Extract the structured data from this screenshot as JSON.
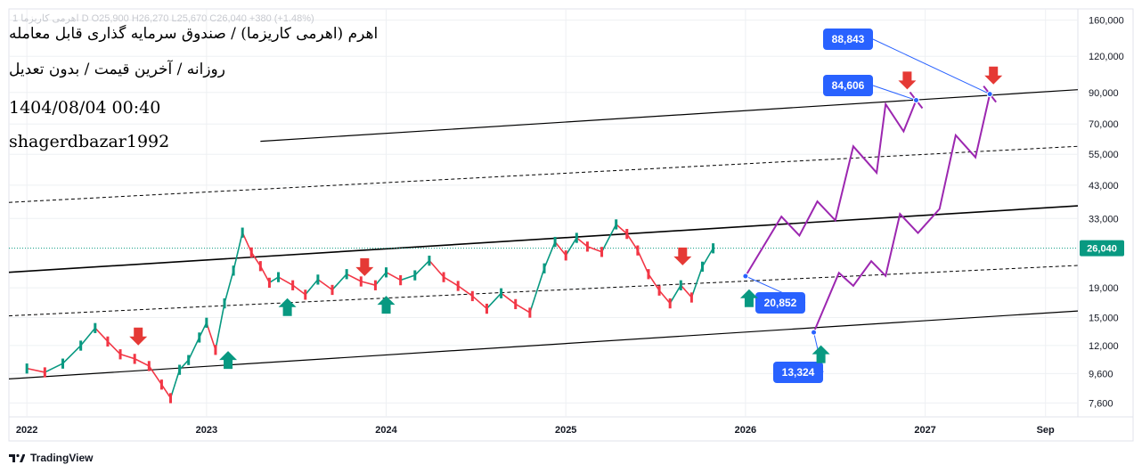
{
  "header": {
    "ticker_line": "اهرم (اهرمی کاریزما) / صندوق سرمایه گذاری قابل معامله",
    "sub_line": "روزانه / آخرین قیمت / بدون تعدیل",
    "date_line": "1404/08/04 00:40",
    "author_line": "shagerdbazar1992",
    "faded_info": "1 اهرمی کاریزما D  O25,900  H26,270  L25,670  C26,040  +380 (+1.48%)"
  },
  "brand": {
    "name": "TradingView"
  },
  "chart_data": {
    "type": "line",
    "y_scale": "log",
    "ylim": [
      6800,
      175000
    ],
    "xlim": [
      2021.9,
      2027.85
    ],
    "y_ticks": [
      160000,
      120000,
      90000,
      70000,
      55000,
      43000,
      33000,
      26040,
      19000,
      15000,
      12000,
      9600,
      7600
    ],
    "y_tick_labels": [
      "160,000",
      "120,000",
      "90,000",
      "70,000",
      "55,000",
      "43,000",
      "33,000",
      "26,040",
      "19,000",
      "15,000",
      "12,000",
      "9,600",
      "7,600"
    ],
    "x_ticks": [
      2022.0,
      2023.0,
      2024.0,
      2025.0,
      2026.0,
      2027.0,
      2027.67
    ],
    "x_tick_labels": [
      "2022",
      "2023",
      "2024",
      "2025",
      "2026",
      "2027",
      "Sep"
    ],
    "last_price": 26040,
    "last_price_label": "26,040",
    "price_series": {
      "name": "",
      "x": [
        2022.0,
        2022.1,
        2022.2,
        2022.3,
        2022.38,
        2022.45,
        2022.52,
        2022.6,
        2022.68,
        2022.75,
        2022.8,
        2022.85,
        2022.9,
        2022.96,
        2023.0,
        2023.05,
        2023.1,
        2023.15,
        2023.2,
        2023.25,
        2023.3,
        2023.35,
        2023.4,
        2023.48,
        2023.55,
        2023.62,
        2023.7,
        2023.78,
        2023.86,
        2023.94,
        2024.0,
        2024.08,
        2024.16,
        2024.24,
        2024.32,
        2024.4,
        2024.48,
        2024.56,
        2024.64,
        2024.72,
        2024.8,
        2024.88,
        2024.94,
        2025.0,
        2025.06,
        2025.12,
        2025.2,
        2025.28,
        2025.34,
        2025.4,
        2025.46,
        2025.52,
        2025.58,
        2025.64,
        2025.7,
        2025.76,
        2025.82
      ],
      "y": [
        10000,
        9700,
        10400,
        12000,
        13800,
        12400,
        11200,
        10800,
        10200,
        8800,
        7900,
        9900,
        10700,
        12800,
        14400,
        11600,
        16800,
        21800,
        29500,
        25200,
        22600,
        19800,
        20700,
        19400,
        18000,
        20300,
        18700,
        21200,
        20000,
        19400,
        21500,
        20200,
        21000,
        23600,
        20700,
        19300,
        17800,
        16100,
        18200,
        16700,
        15600,
        22200,
        27400,
        24600,
        28300,
        26400,
        25300,
        31500,
        29200,
        25600,
        21200,
        18600,
        16800,
        19400,
        17600,
        22500,
        26040
      ]
    },
    "projection_1": {
      "x": [
        2026.0,
        2026.2,
        2026.3,
        2026.4,
        2026.5,
        2026.6,
        2026.73,
        2026.78,
        2026.88,
        2026.95
      ],
      "y": [
        20852,
        33500,
        28800,
        37800,
        32500,
        58600,
        47500,
        82000,
        66000,
        84606
      ]
    },
    "projection_2": {
      "x": [
        2026.38,
        2026.52,
        2026.6,
        2026.7,
        2026.78,
        2026.86,
        2026.96,
        2027.08,
        2027.17,
        2027.28,
        2027.36
      ],
      "y": [
        13324,
        21400,
        19300,
        23500,
        20900,
        34200,
        29400,
        35600,
        64000,
        53700,
        88843
      ]
    },
    "channel_lines": [
      {
        "style": "solid",
        "x": [
          2021.9,
          2027.85
        ],
        "y": [
          9200,
          15800
        ],
        "width": 1.2
      },
      {
        "style": "dashed",
        "x": [
          2021.9,
          2027.85
        ],
        "y": [
          15200,
          22700
        ],
        "width": 1
      },
      {
        "style": "solid",
        "x": [
          2021.9,
          2027.85
        ],
        "y": [
          21500,
          36500
        ],
        "width": 1.6
      },
      {
        "style": "dashed",
        "x": [
          2021.9,
          2027.85
        ],
        "y": [
          37500,
          58600
        ],
        "width": 1
      },
      {
        "style": "solid",
        "x": [
          2023.3,
          2027.85
        ],
        "y": [
          61000,
          92000
        ],
        "width": 1.2
      }
    ],
    "annotations": [
      {
        "label": "88,843",
        "x": 2027.36,
        "y": 88843
      },
      {
        "label": "84,606",
        "x": 2026.95,
        "y": 84606
      },
      {
        "label": "20,852",
        "x": 2026.0,
        "y": 20852
      },
      {
        "label": "13,324",
        "x": 2026.38,
        "y": 13324
      }
    ],
    "arrows_up": [
      {
        "x": 2023.12,
        "y": 10700
      },
      {
        "x": 2023.45,
        "y": 16300
      },
      {
        "x": 2024.0,
        "y": 16600
      },
      {
        "x": 2026.02,
        "y": 17500
      },
      {
        "x": 2026.42,
        "y": 11200
      }
    ],
    "arrows_down": [
      {
        "x": 2022.62,
        "y": 12900
      },
      {
        "x": 2023.88,
        "y": 22400
      },
      {
        "x": 2025.65,
        "y": 24400
      },
      {
        "x": 2026.9,
        "y": 99000
      },
      {
        "x": 2027.38,
        "y": 103000
      }
    ],
    "colors": {
      "price_up": "#089981",
      "price_down": "#f23645",
      "projection": "#9c27b0",
      "annotation": "#2962ff",
      "arrow_up": "#089981",
      "arrow_down": "#e53935",
      "channel": "#000000",
      "last_price_line": "#089981",
      "grid": "#eef0f3",
      "axis_text": "#131722"
    }
  }
}
